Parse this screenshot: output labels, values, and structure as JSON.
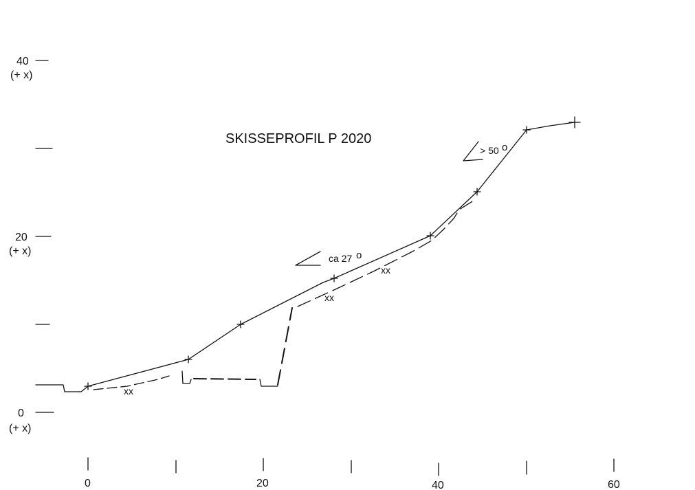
{
  "title": "SKISSEPROFIL P 2020",
  "y_axis": {
    "ticks": [
      {
        "value": "0",
        "sub": "(+ x)"
      },
      {
        "value": "",
        "sub": ""
      },
      {
        "value": "20",
        "sub": "(+ x)"
      },
      {
        "value": "",
        "sub": ""
      },
      {
        "value": "40",
        "sub": "(+ x)"
      }
    ]
  },
  "x_axis": {
    "ticks": [
      "0",
      "",
      "20",
      "",
      "40",
      "",
      "60"
    ]
  },
  "annotations": {
    "lower_angle": "ca 27",
    "upper_angle": "> 50",
    "degree_symbol": "o",
    "xx_marks": [
      "xx",
      "xx",
      "xx"
    ]
  }
}
